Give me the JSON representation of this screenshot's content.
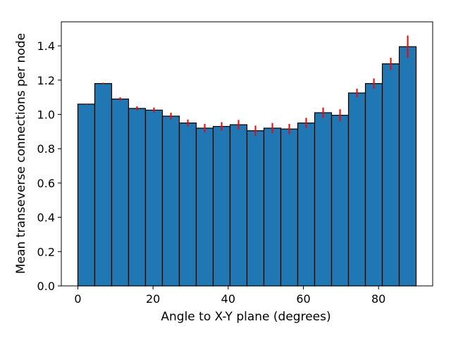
{
  "colors": {
    "bar_fill": "#1f77b4",
    "bar_edge": "#000000",
    "error_bar": "#ff0000",
    "axis": "#000000",
    "background": "#ffffff"
  },
  "chart_data": {
    "type": "bar",
    "title": "",
    "xlabel": "Angle to X-Y plane (degrees)",
    "ylabel": "Mean transeverse connections per node",
    "xlim": [
      -4.4,
      94.4
    ],
    "ylim": [
      0.0,
      1.54
    ],
    "xticks": [
      0,
      20,
      40,
      60,
      80
    ],
    "yticks": [
      0.0,
      0.2,
      0.4,
      0.6,
      0.8,
      1.0,
      1.2,
      1.4
    ],
    "xtick_labels": [
      "0",
      "20",
      "40",
      "60",
      "80"
    ],
    "ytick_labels": [
      "0.0",
      "0.2",
      "0.4",
      "0.6",
      "0.8",
      "1.0",
      "1.2",
      "1.4"
    ],
    "grid": false,
    "legend": false,
    "bin_width": 4.5,
    "bin_starts": [
      0,
      4.5,
      9,
      13.5,
      18,
      22.5,
      27,
      31.5,
      36,
      40.5,
      45,
      49.5,
      54,
      58.5,
      63,
      67.5,
      72,
      76.5,
      81,
      85.5
    ],
    "values": [
      1.06,
      1.18,
      1.09,
      1.035,
      1.025,
      0.99,
      0.95,
      0.92,
      0.93,
      0.94,
      0.905,
      0.92,
      0.915,
      0.95,
      1.01,
      0.995,
      1.125,
      1.18,
      1.295,
      1.395
    ],
    "errors": [
      0.0,
      0.005,
      0.01,
      0.012,
      0.015,
      0.02,
      0.02,
      0.025,
      0.025,
      0.028,
      0.03,
      0.03,
      0.03,
      0.03,
      0.03,
      0.035,
      0.025,
      0.03,
      0.035,
      0.065
    ]
  }
}
